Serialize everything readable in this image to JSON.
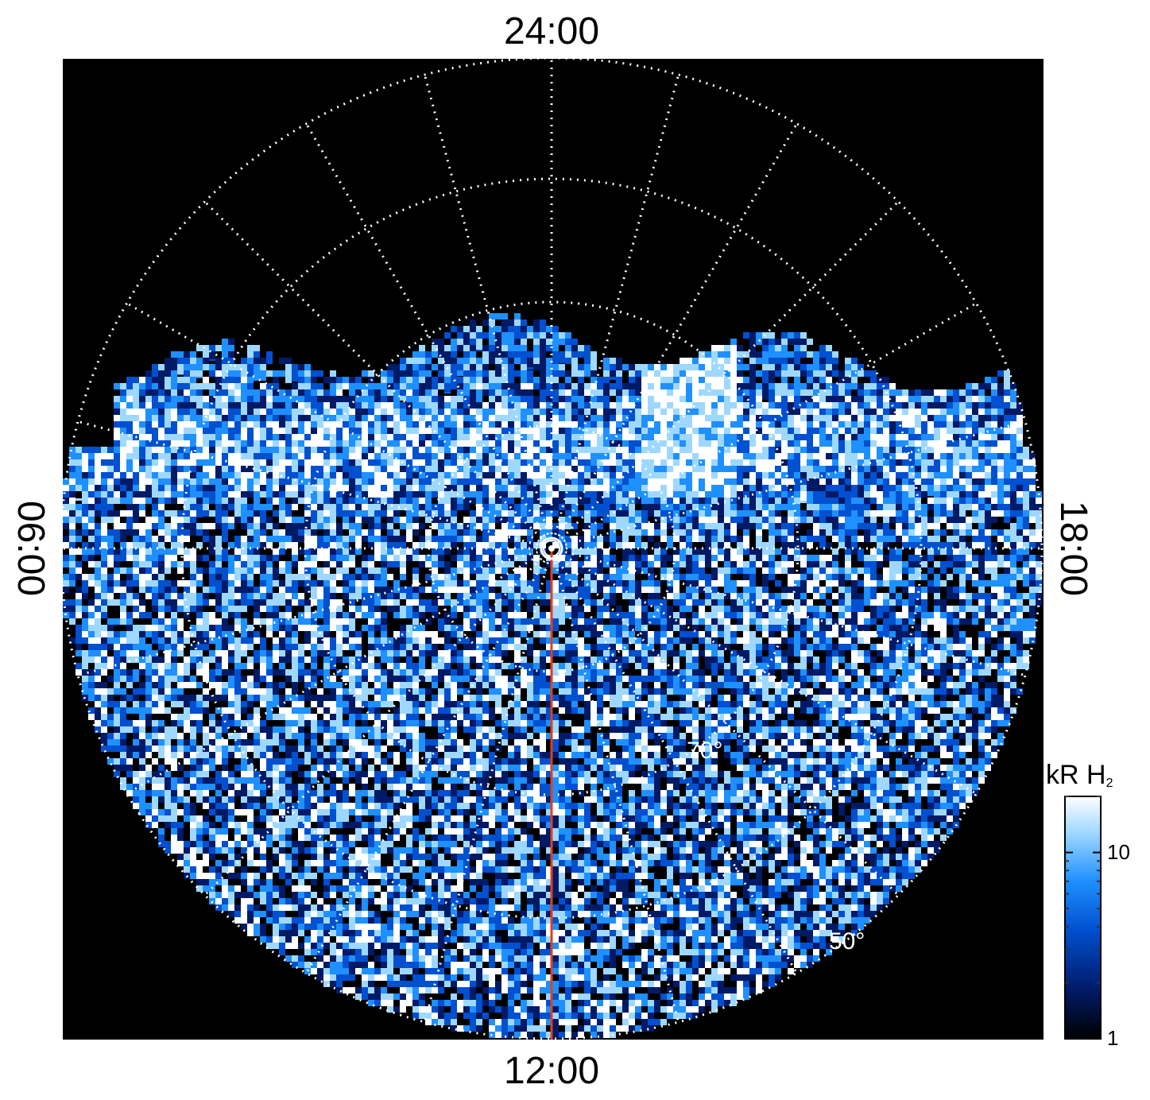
{
  "figure": {
    "local_time_labels": {
      "top": "24:00",
      "bottom": "12:00",
      "left": "06:00",
      "right": "18:00"
    },
    "latitude_labels": {
      "lat_70": "70°",
      "lat_50": "50°"
    },
    "colorbar": {
      "unit": "kR",
      "species": "H",
      "species_subscript": "2",
      "scale": "log",
      "range": [
        1,
        20
      ],
      "ticks": [
        {
          "value": 10,
          "label": "10"
        },
        {
          "value": 1,
          "label": "1"
        }
      ],
      "colormap": [
        "#000000",
        "#001a66",
        "#0050d0",
        "#1e90ff",
        "#9fd8ff",
        "#ffffff"
      ]
    },
    "colors": {
      "background": "#000000",
      "grid": "#ffffff",
      "meridian_line": "#e0401a",
      "page": "#ffffff"
    },
    "projection": "polar",
    "grid": true
  }
}
